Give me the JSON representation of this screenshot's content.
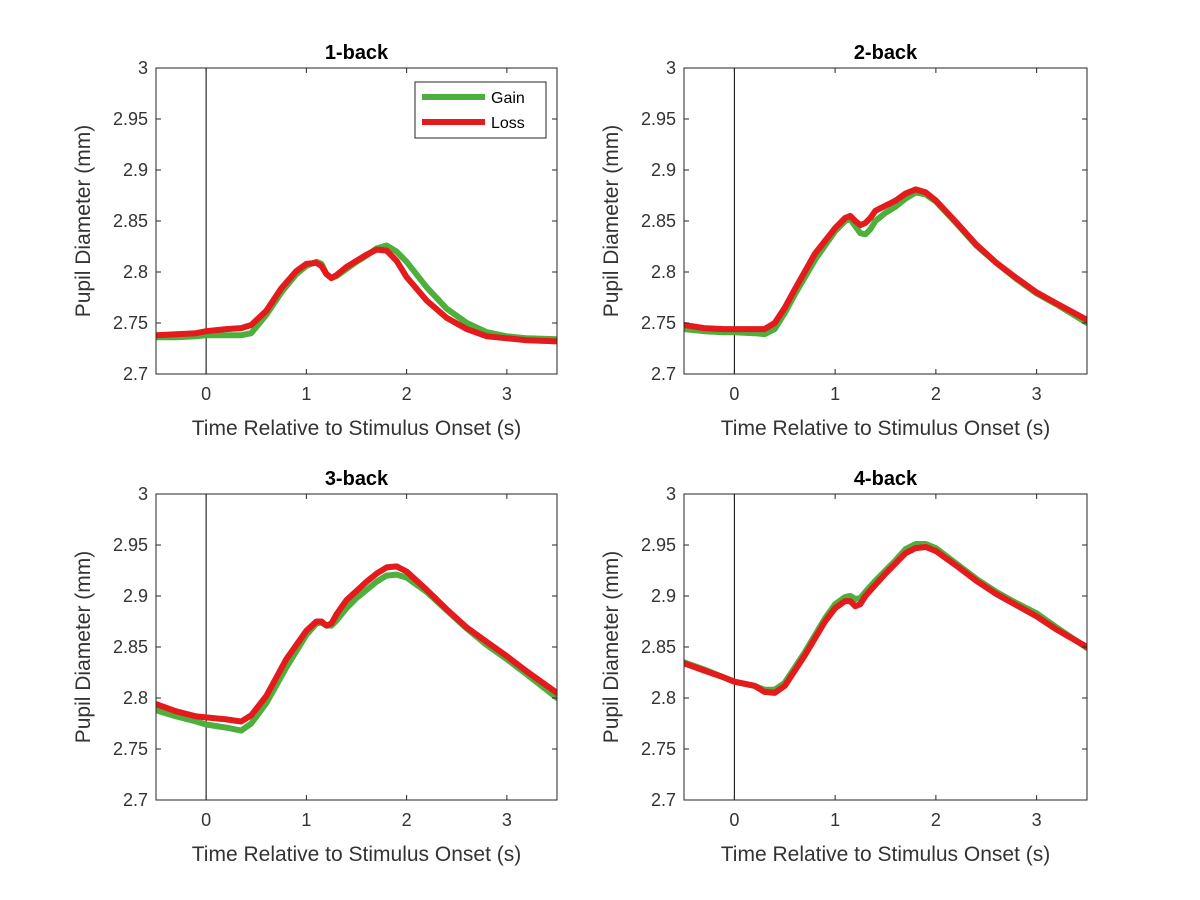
{
  "colors": {
    "gain": "#4daf3c",
    "loss": "#e41a1c"
  },
  "chart_data": [
    {
      "type": "line",
      "title": "1-back",
      "xlabel": "Time Relative to Stimulus Onset (s)",
      "ylabel": "Pupil Diameter (mm)",
      "xlim": [
        -0.5,
        3.5
      ],
      "ylim": [
        2.7,
        3.0
      ],
      "xticks": [
        "0",
        "1",
        "2",
        "3"
      ],
      "yticks": [
        "2.7",
        "2.75",
        "2.8",
        "2.85",
        "2.9",
        "2.95",
        "3"
      ],
      "legend": {
        "position": "top-right",
        "entries": [
          "Gain",
          "Loss"
        ]
      },
      "series": [
        {
          "name": "Gain",
          "color": "#4daf3c",
          "x": [
            -0.5,
            -0.3,
            -0.1,
            0,
            0.2,
            0.35,
            0.45,
            0.6,
            0.75,
            0.9,
            1.0,
            1.1,
            1.15,
            1.2,
            1.25,
            1.3,
            1.4,
            1.5,
            1.6,
            1.7,
            1.8,
            1.9,
            2.0,
            2.2,
            2.4,
            2.6,
            2.8,
            3.0,
            3.2,
            3.5
          ],
          "y": [
            2.736,
            2.736,
            2.737,
            2.738,
            2.738,
            2.738,
            2.74,
            2.758,
            2.78,
            2.798,
            2.806,
            2.81,
            2.808,
            2.798,
            2.794,
            2.796,
            2.803,
            2.81,
            2.816,
            2.823,
            2.826,
            2.82,
            2.81,
            2.785,
            2.764,
            2.75,
            2.741,
            2.737,
            2.735,
            2.734
          ]
        },
        {
          "name": "Loss",
          "color": "#e41a1c",
          "x": [
            -0.5,
            -0.3,
            -0.1,
            0,
            0.2,
            0.35,
            0.45,
            0.6,
            0.75,
            0.9,
            1.0,
            1.1,
            1.15,
            1.2,
            1.25,
            1.3,
            1.4,
            1.5,
            1.6,
            1.7,
            1.8,
            1.9,
            2.0,
            2.2,
            2.4,
            2.6,
            2.8,
            3.0,
            3.2,
            3.5
          ],
          "y": [
            2.738,
            2.739,
            2.74,
            2.742,
            2.744,
            2.745,
            2.748,
            2.762,
            2.784,
            2.801,
            2.808,
            2.809,
            2.806,
            2.798,
            2.794,
            2.797,
            2.805,
            2.811,
            2.817,
            2.822,
            2.821,
            2.811,
            2.795,
            2.772,
            2.755,
            2.744,
            2.737,
            2.735,
            2.733,
            2.732
          ]
        }
      ]
    },
    {
      "type": "line",
      "title": "2-back",
      "xlabel": "Time Relative to Stimulus Onset (s)",
      "ylabel": "Pupil Diameter (mm)",
      "xlim": [
        -0.5,
        3.5
      ],
      "ylim": [
        2.7,
        3.0
      ],
      "xticks": [
        "0",
        "1",
        "2",
        "3"
      ],
      "yticks": [
        "2.7",
        "2.75",
        "2.8",
        "2.85",
        "2.9",
        "2.95",
        "3"
      ],
      "series": [
        {
          "name": "Gain",
          "color": "#4daf3c",
          "x": [
            -0.5,
            -0.3,
            -0.1,
            0,
            0.2,
            0.3,
            0.4,
            0.5,
            0.6,
            0.8,
            1.0,
            1.1,
            1.15,
            1.2,
            1.25,
            1.3,
            1.35,
            1.4,
            1.5,
            1.6,
            1.7,
            1.8,
            1.9,
            2.0,
            2.2,
            2.4,
            2.6,
            2.8,
            3.0,
            3.2,
            3.5
          ],
          "y": [
            2.744,
            2.742,
            2.741,
            2.741,
            2.74,
            2.739,
            2.744,
            2.76,
            2.778,
            2.812,
            2.84,
            2.85,
            2.852,
            2.845,
            2.838,
            2.837,
            2.842,
            2.85,
            2.858,
            2.864,
            2.872,
            2.878,
            2.876,
            2.869,
            2.848,
            2.826,
            2.809,
            2.793,
            2.779,
            2.768,
            2.75
          ]
        },
        {
          "name": "Loss",
          "color": "#e41a1c",
          "x": [
            -0.5,
            -0.3,
            -0.1,
            0,
            0.2,
            0.3,
            0.4,
            0.5,
            0.6,
            0.8,
            1.0,
            1.1,
            1.15,
            1.2,
            1.25,
            1.3,
            1.35,
            1.4,
            1.5,
            1.6,
            1.7,
            1.8,
            1.9,
            2.0,
            2.2,
            2.4,
            2.6,
            2.8,
            3.0,
            3.2,
            3.5
          ],
          "y": [
            2.748,
            2.745,
            2.744,
            2.744,
            2.744,
            2.744,
            2.75,
            2.765,
            2.783,
            2.818,
            2.843,
            2.853,
            2.855,
            2.85,
            2.846,
            2.848,
            2.853,
            2.86,
            2.865,
            2.87,
            2.877,
            2.881,
            2.878,
            2.87,
            2.849,
            2.827,
            2.809,
            2.794,
            2.78,
            2.769,
            2.753
          ]
        }
      ]
    },
    {
      "type": "line",
      "title": "3-back",
      "xlabel": "Time Relative to Stimulus Onset (s)",
      "ylabel": "Pupil Diameter (mm)",
      "xlim": [
        -0.5,
        3.5
      ],
      "ylim": [
        2.7,
        3.0
      ],
      "xticks": [
        "0",
        "1",
        "2",
        "3"
      ],
      "yticks": [
        "2.7",
        "2.75",
        "2.8",
        "2.85",
        "2.9",
        "2.95",
        "3"
      ],
      "series": [
        {
          "name": "Gain",
          "color": "#4daf3c",
          "x": [
            -0.5,
            -0.3,
            -0.1,
            0,
            0.2,
            0.35,
            0.45,
            0.6,
            0.8,
            1.0,
            1.1,
            1.15,
            1.2,
            1.25,
            1.3,
            1.4,
            1.5,
            1.6,
            1.7,
            1.8,
            1.9,
            2.0,
            2.2,
            2.4,
            2.6,
            2.8,
            3.0,
            3.2,
            3.5
          ],
          "y": [
            2.788,
            2.782,
            2.777,
            2.774,
            2.771,
            2.768,
            2.775,
            2.795,
            2.83,
            2.862,
            2.873,
            2.874,
            2.871,
            2.871,
            2.876,
            2.888,
            2.898,
            2.906,
            2.914,
            2.92,
            2.921,
            2.918,
            2.904,
            2.886,
            2.868,
            2.852,
            2.838,
            2.823,
            2.8
          ]
        },
        {
          "name": "Loss",
          "color": "#e41a1c",
          "x": [
            -0.5,
            -0.3,
            -0.1,
            0,
            0.2,
            0.35,
            0.45,
            0.6,
            0.8,
            1.0,
            1.1,
            1.15,
            1.2,
            1.25,
            1.3,
            1.4,
            1.5,
            1.6,
            1.7,
            1.8,
            1.9,
            2.0,
            2.2,
            2.4,
            2.6,
            2.8,
            3.0,
            3.2,
            3.5
          ],
          "y": [
            2.794,
            2.787,
            2.782,
            2.781,
            2.779,
            2.777,
            2.783,
            2.802,
            2.838,
            2.866,
            2.875,
            2.875,
            2.871,
            2.873,
            2.882,
            2.896,
            2.905,
            2.914,
            2.922,
            2.928,
            2.929,
            2.924,
            2.906,
            2.887,
            2.869,
            2.855,
            2.841,
            2.826,
            2.805
          ]
        }
      ]
    },
    {
      "type": "line",
      "title": "4-back",
      "xlabel": "Time Relative to Stimulus Onset (s)",
      "ylabel": "Pupil Diameter (mm)",
      "xlim": [
        -0.5,
        3.5
      ],
      "ylim": [
        2.7,
        3.0
      ],
      "xticks": [
        "0",
        "1",
        "2",
        "3"
      ],
      "yticks": [
        "2.7",
        "2.75",
        "2.8",
        "2.85",
        "2.9",
        "2.95",
        "3"
      ],
      "series": [
        {
          "name": "Gain",
          "color": "#4daf3c",
          "x": [
            -0.5,
            -0.3,
            -0.1,
            0,
            0.2,
            0.3,
            0.4,
            0.5,
            0.7,
            0.9,
            1.0,
            1.1,
            1.15,
            1.2,
            1.25,
            1.3,
            1.4,
            1.5,
            1.6,
            1.7,
            1.8,
            1.9,
            2.0,
            2.2,
            2.4,
            2.6,
            2.8,
            3.0,
            3.2,
            3.5
          ],
          "y": [
            2.835,
            2.828,
            2.82,
            2.816,
            2.812,
            2.808,
            2.808,
            2.815,
            2.845,
            2.878,
            2.892,
            2.899,
            2.9,
            2.897,
            2.898,
            2.904,
            2.915,
            2.925,
            2.935,
            2.946,
            2.951,
            2.951,
            2.947,
            2.932,
            2.917,
            2.904,
            2.893,
            2.883,
            2.869,
            2.849
          ]
        },
        {
          "name": "Loss",
          "color": "#e41a1c",
          "x": [
            -0.5,
            -0.3,
            -0.1,
            0,
            0.2,
            0.3,
            0.4,
            0.5,
            0.7,
            0.9,
            1.0,
            1.1,
            1.15,
            1.2,
            1.25,
            1.3,
            1.4,
            1.5,
            1.6,
            1.7,
            1.8,
            1.9,
            2.0,
            2.2,
            2.4,
            2.6,
            2.8,
            3.0,
            3.2,
            3.5
          ],
          "y": [
            2.834,
            2.827,
            2.82,
            2.816,
            2.812,
            2.806,
            2.805,
            2.812,
            2.842,
            2.875,
            2.888,
            2.895,
            2.895,
            2.89,
            2.892,
            2.9,
            2.911,
            2.922,
            2.932,
            2.942,
            2.947,
            2.948,
            2.944,
            2.93,
            2.915,
            2.902,
            2.891,
            2.88,
            2.867,
            2.85
          ]
        }
      ]
    }
  ]
}
